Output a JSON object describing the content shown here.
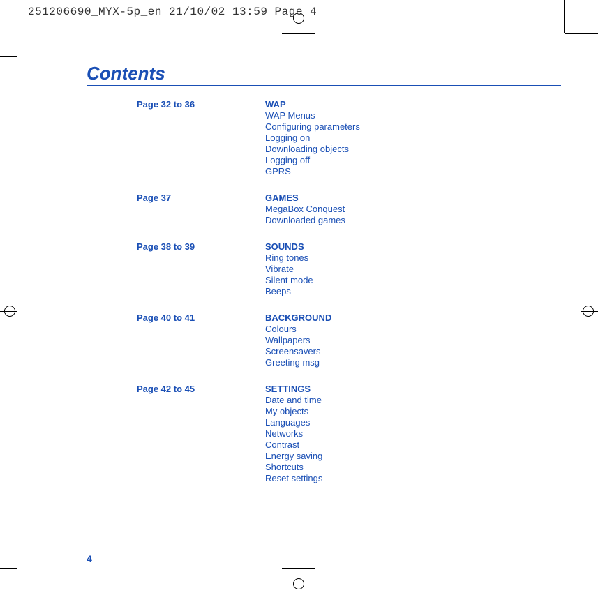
{
  "cropHeader": "251206690_MYX-5p_en  21/10/02  13:59  Page 4",
  "title": "Contents",
  "pageNumber": "4",
  "colors": {
    "accent": "#1a4fb5",
    "text": "#1a4fb5",
    "mono": "#333333",
    "background": "#ffffff"
  },
  "sections": [
    {
      "page": "Page 32 to 36",
      "head": "WAP",
      "items": [
        "WAP Menus",
        "Configuring parameters",
        "Logging on",
        "Downloading objects",
        "Logging off",
        "GPRS"
      ]
    },
    {
      "page": "Page 37",
      "head": "GAMES",
      "items": [
        "MegaBox Conquest",
        "Downloaded games"
      ]
    },
    {
      "page": "Page 38 to 39",
      "head": "SOUNDS",
      "items": [
        "Ring tones",
        "Vibrate",
        "Silent mode",
        "Beeps"
      ]
    },
    {
      "page": "Page 40 to 41",
      "head": "BACKGROUND",
      "items": [
        "Colours",
        "Wallpapers",
        "Screensavers",
        "Greeting msg"
      ]
    },
    {
      "page": "Page 42 to 45",
      "head": "SETTINGS",
      "items": [
        "Date and time",
        "My objects",
        "Languages",
        "Networks",
        "Contrast",
        "Energy saving",
        "Shortcuts",
        "Reset settings"
      ]
    }
  ]
}
